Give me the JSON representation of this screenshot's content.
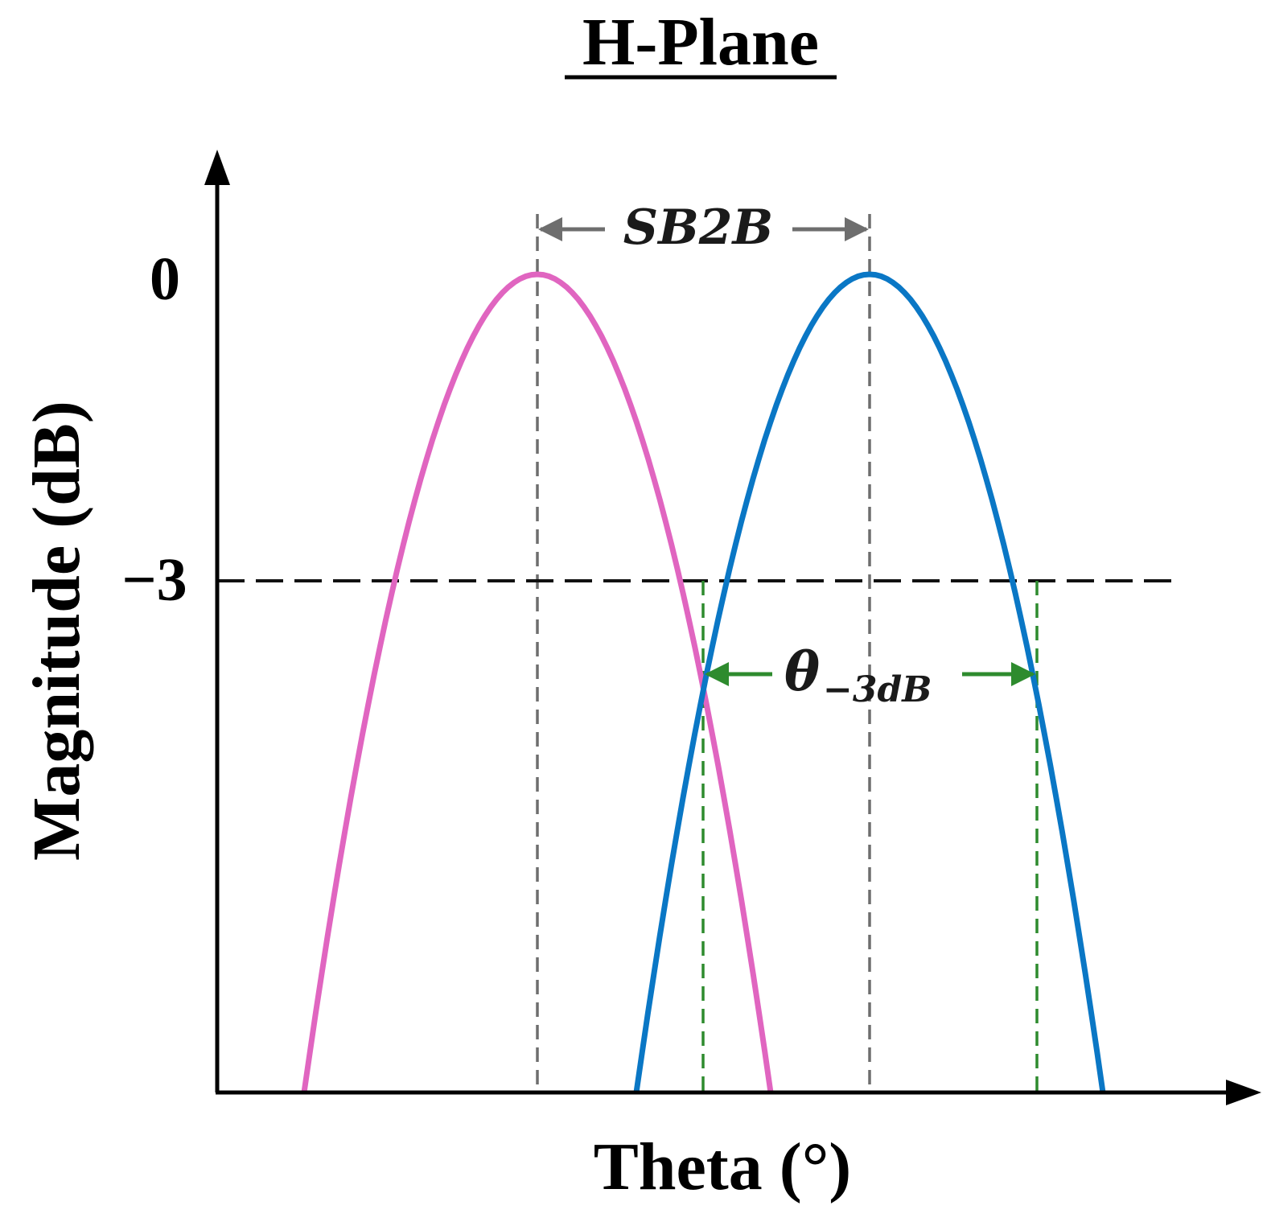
{
  "title": "H-Plane",
  "xlabel": "Theta (°)",
  "ylabel": "Magnitude (dB)",
  "y_ticks": {
    "top": "0",
    "middle": "−3"
  },
  "annotations": {
    "sb2b": "SB2B",
    "beamwidth_symbol": "θ",
    "beamwidth_subscript": "−3dB"
  },
  "colors": {
    "beam_left": "#e065c0",
    "beam_right": "#0a77c5",
    "guide_gray": "#6e6e6e",
    "guide_green": "#2e8b2e",
    "axis": "#000000"
  },
  "icons": {
    "x_axis_arrow": "arrow-right-icon",
    "y_axis_arrow": "arrow-up-icon"
  }
}
